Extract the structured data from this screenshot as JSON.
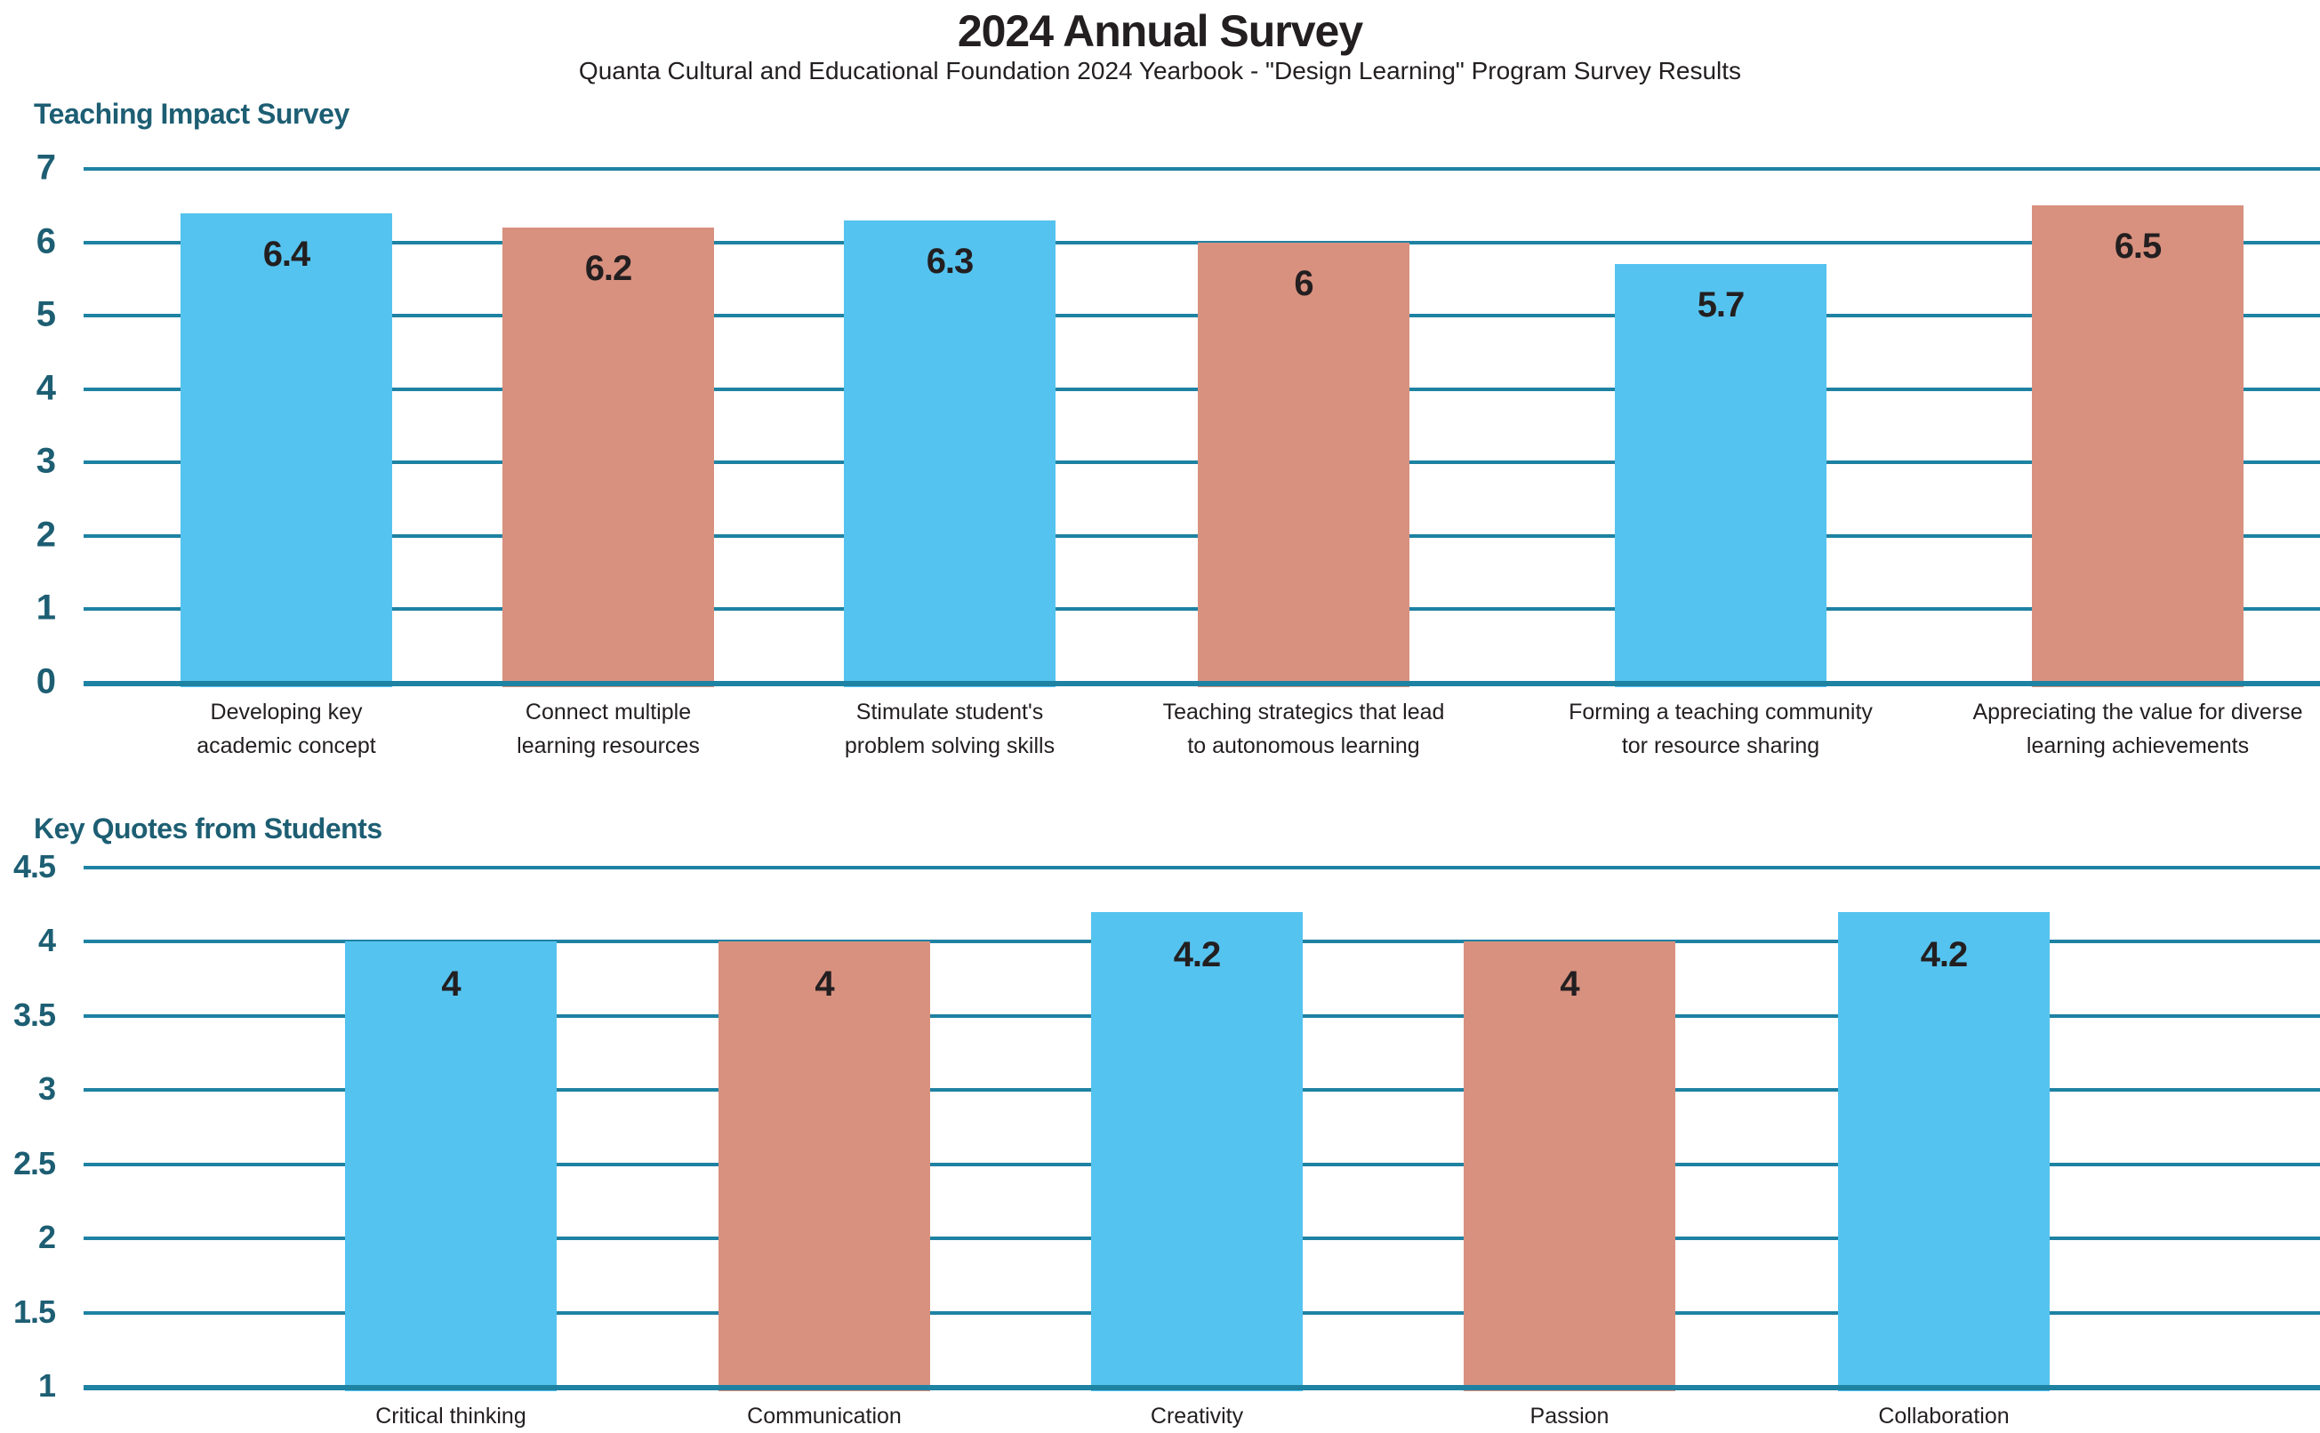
{
  "header": {
    "title": "2024 Annual Survey",
    "subtitle": "Quanta Cultural and Educational Foundation 2024 Yearbook - \"Design Learning\" Program Survey Results"
  },
  "colors": {
    "bar_blue": "#55C3EF",
    "bar_salmon": "#D8917F",
    "gridline_teal": "#1E82A3",
    "heading_teal": "#1D5E73",
    "text_dark": "#231F20"
  },
  "chart_data": [
    {
      "type": "bar",
      "title": "Teaching Impact Survey",
      "categories": [
        [
          "Developing key",
          "academic concept"
        ],
        [
          "Connect multiple",
          "learning resources"
        ],
        [
          "Stimulate student's",
          "problem solving skills"
        ],
        [
          "Teaching strategics that lead",
          "to autonomous learning"
        ],
        [
          "Forming a teaching community",
          "tor resource sharing"
        ],
        [
          "Appreciating the value for diverse",
          "learning achievements"
        ]
      ],
      "values": [
        6.4,
        6.2,
        6.3,
        6,
        5.7,
        6.5
      ],
      "value_labels": [
        "6.4",
        "6.2",
        "6.3",
        "6",
        "5.7",
        "6.5"
      ],
      "bar_palette": [
        "blue",
        "salmon",
        "blue",
        "salmon",
        "blue",
        "salmon"
      ],
      "yticks": [
        7,
        6,
        5,
        4,
        3,
        2,
        1,
        0
      ],
      "ylim": [
        0,
        7
      ],
      "xlabel": "",
      "ylabel": "",
      "grid": true,
      "legend": false
    },
    {
      "type": "bar",
      "title": "Key Quotes from Students",
      "categories": [
        [
          "Critical thinking"
        ],
        [
          "Communication"
        ],
        [
          "Creativity"
        ],
        [
          "Passion"
        ],
        [
          "Collaboration"
        ]
      ],
      "values": [
        4,
        4,
        4.2,
        4,
        4.2
      ],
      "value_labels": [
        "4",
        "4",
        "4.2",
        "4",
        "4.2"
      ],
      "bar_palette": [
        "blue",
        "salmon",
        "blue",
        "salmon",
        "blue"
      ],
      "yticks": [
        4.5,
        4,
        3.5,
        3,
        2.5,
        2,
        1.5,
        1
      ],
      "ylim": [
        1,
        4.5
      ],
      "xlabel": "",
      "ylabel": "",
      "grid": true,
      "legend": false
    }
  ]
}
